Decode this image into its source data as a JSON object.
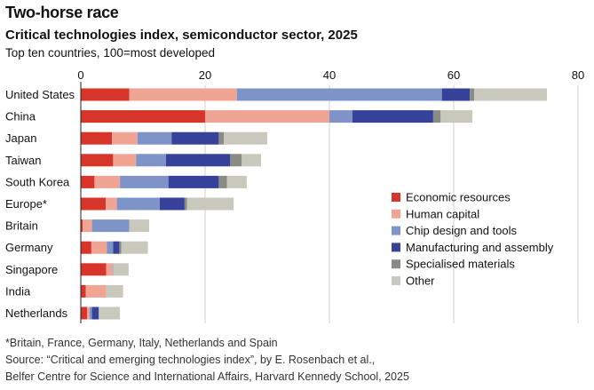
{
  "header": {
    "title": "Two-horse race",
    "subtitle": "Critical technologies index, semiconductor sector, 2025",
    "description": "Top ten countries, 100=most developed"
  },
  "footer": {
    "note": "*Britain, France, Germany, Italy, Netherlands and Spain",
    "source_line1": "Source: “Critical and emerging technologies index”, by E. Rosenbach et al.,",
    "source_line2": "Belfer Centre for Science and International Affairs, Harvard Kennedy School, 2025"
  },
  "chart_data": {
    "type": "bar",
    "orientation": "horizontal",
    "stacked": true,
    "xlim": [
      0,
      80
    ],
    "x_ticks": [
      0,
      20,
      40,
      60,
      80
    ],
    "x_tick_labels": [
      "0",
      "20",
      "40",
      "60",
      "80"
    ],
    "grid": true,
    "legend_placement": "right",
    "categories": [
      "United States",
      "China",
      "Japan",
      "Taiwan",
      "South Korea",
      "Europe*",
      "Britain",
      "Germany",
      "Singapore",
      "India",
      "Netherlands"
    ],
    "series": [
      {
        "name": "Economic resources",
        "color": "#d8352a",
        "values": [
          7.8,
          20.0,
          5.0,
          5.2,
          2.2,
          4.0,
          0.3,
          1.7,
          4.1,
          0.8,
          1.0
        ]
      },
      {
        "name": "Human capital",
        "color": "#f0a494",
        "values": [
          17.3,
          20.0,
          4.1,
          3.7,
          4.1,
          1.8,
          1.5,
          2.5,
          1.0,
          3.3,
          0.4
        ]
      },
      {
        "name": "Chip design and tools",
        "color": "#7e94c8",
        "values": [
          33.0,
          3.7,
          5.5,
          4.8,
          7.8,
          6.9,
          6.0,
          1.0,
          0.1,
          0.0,
          0.4
        ]
      },
      {
        "name": "Manufacturing and assembly",
        "color": "#36419a",
        "values": [
          4.5,
          13.0,
          7.6,
          10.3,
          8.1,
          4.0,
          0.0,
          1.0,
          0.0,
          0.0,
          1.1
        ]
      },
      {
        "name": "Specialised materials",
        "color": "#8a8c83",
        "values": [
          0.7,
          1.2,
          0.8,
          1.9,
          1.3,
          0.4,
          0.0,
          0.3,
          0.0,
          0.0,
          0.0
        ]
      },
      {
        "name": "Other",
        "color": "#c9c8bd",
        "values": [
          11.7,
          5.1,
          7.0,
          3.1,
          3.2,
          7.5,
          3.2,
          4.3,
          2.5,
          2.7,
          3.4
        ]
      }
    ]
  }
}
